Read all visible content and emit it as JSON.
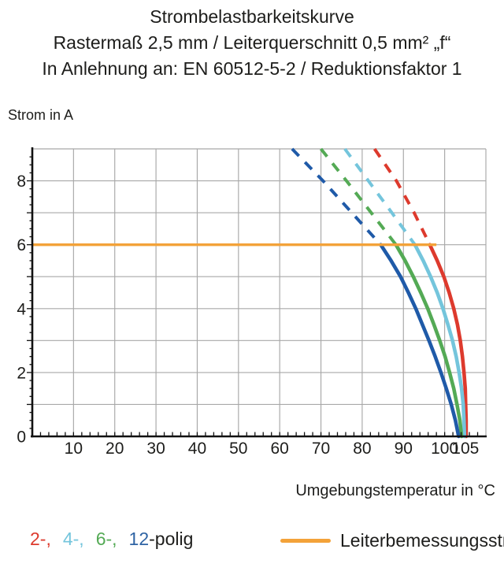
{
  "title": {
    "line1": "Strombelastbarkeitskurve",
    "line2": "Rastermaß 2,5 mm / Leiterquerschnitt 0,5 mm² „f“",
    "line3": "In Anlehnung an: EN 60512-5-2 / Reduktionsfaktor 1"
  },
  "chart_data": {
    "type": "line",
    "title": "Strombelastbarkeitskurve",
    "xlabel": "Umgebungstemperatur in °C",
    "ylabel": "Strom in A",
    "xlim": [
      0,
      110
    ],
    "ylim": [
      0,
      9
    ],
    "x_gridline_step": 10,
    "y_gridline_step": 1,
    "x_minor_tick_step": 2,
    "y_minor_tick_step": 0.25,
    "x_tick_labels": [
      10,
      20,
      30,
      40,
      50,
      60,
      70,
      80,
      90,
      100,
      105
    ],
    "y_tick_labels": [
      0,
      2,
      4,
      6,
      8
    ],
    "grid_color": "#a8a8a8",
    "axis_color": "#111111",
    "rated_current_line": {
      "value": 6,
      "x_start": 0,
      "x_end": 98,
      "color": "#f3a239",
      "label": "Leiterbemessungsstrom"
    },
    "series": [
      {
        "name": "2-polig",
        "color": "#dd3a2d",
        "dashed": [
          [
            83,
            9
          ],
          [
            88.3,
            8
          ],
          [
            92.6,
            7
          ],
          [
            96.4,
            6
          ]
        ],
        "solid": [
          [
            96.4,
            6
          ],
          [
            98.2,
            5.5
          ],
          [
            99.8,
            5
          ],
          [
            101.1,
            4.5
          ],
          [
            102.2,
            4
          ],
          [
            103.1,
            3.5
          ],
          [
            103.8,
            3
          ],
          [
            104.3,
            2.5
          ],
          [
            104.7,
            2
          ],
          [
            105,
            1.5
          ],
          [
            105.1,
            1
          ],
          [
            105.2,
            0.5
          ],
          [
            105.2,
            0
          ]
        ]
      },
      {
        "name": "4-polig",
        "color": "#74c5dc",
        "dashed": [
          [
            75.8,
            9
          ],
          [
            81.5,
            8
          ],
          [
            87.2,
            7
          ],
          [
            92.8,
            6
          ]
        ],
        "solid": [
          [
            92.8,
            6
          ],
          [
            94.8,
            5.5
          ],
          [
            96.6,
            5
          ],
          [
            98.2,
            4.5
          ],
          [
            99.6,
            4
          ],
          [
            100.8,
            3.5
          ],
          [
            101.9,
            3
          ],
          [
            102.8,
            2.5
          ],
          [
            103.5,
            2
          ],
          [
            104.1,
            1.5
          ],
          [
            104.5,
            1
          ],
          [
            104.7,
            0.5
          ],
          [
            104.8,
            0
          ]
        ]
      },
      {
        "name": "6-polig",
        "color": "#54aa55",
        "dashed": [
          [
            70,
            9
          ],
          [
            76.2,
            8
          ],
          [
            82.2,
            7
          ],
          [
            88.2,
            6
          ]
        ],
        "solid": [
          [
            88.2,
            6
          ],
          [
            90.4,
            5.5
          ],
          [
            92.4,
            5
          ],
          [
            94.2,
            4.5
          ],
          [
            95.9,
            4
          ],
          [
            97.4,
            3.5
          ],
          [
            98.8,
            3
          ],
          [
            100.1,
            2.5
          ],
          [
            101.2,
            2
          ],
          [
            102.2,
            1.5
          ],
          [
            103,
            1
          ],
          [
            103.7,
            0.5
          ],
          [
            104.1,
            0
          ]
        ]
      },
      {
        "name": "12-polig",
        "color": "#1f5aa8",
        "dashed": [
          [
            63,
            9
          ],
          [
            70.5,
            8
          ],
          [
            77.5,
            7
          ],
          [
            84.5,
            6
          ]
        ],
        "solid": [
          [
            84.5,
            6
          ],
          [
            87,
            5.5
          ],
          [
            89.3,
            5
          ],
          [
            91.2,
            4.5
          ],
          [
            93,
            4
          ],
          [
            94.6,
            3.5
          ],
          [
            96.2,
            3
          ],
          [
            97.7,
            2.5
          ],
          [
            99.1,
            2
          ],
          [
            100.4,
            1.5
          ],
          [
            101.6,
            1
          ],
          [
            102.6,
            0.5
          ],
          [
            103.4,
            0
          ]
        ]
      }
    ],
    "legend_position": "bottom"
  },
  "legend": {
    "poles": [
      {
        "label": "2-,",
        "color": "#dd3a2d"
      },
      {
        "label": "4-,",
        "color": "#74c5dc"
      },
      {
        "label": "6-,",
        "color": "#54aa55"
      },
      {
        "label": "12",
        "color": "#2f64a4"
      },
      {
        "label": "-polig",
        "color": "#1d1d1b"
      }
    ],
    "rated": {
      "label": "Leiterbemessungsstrom"
    }
  }
}
